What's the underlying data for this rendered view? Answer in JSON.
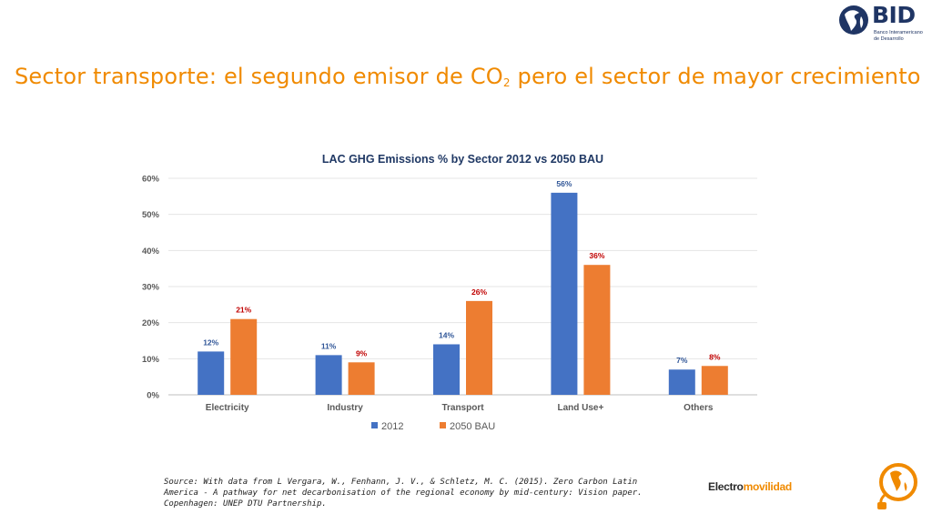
{
  "slide": {
    "title_main": "Sector transporte: el segundo emisor de CO",
    "title_sub": "2",
    "title_end": " pero el sector de mayor crecimiento"
  },
  "logo": {
    "word": "BID",
    "subtitle_line1": "Banco Interamericano",
    "subtitle_line2": "de Desarrollo"
  },
  "brand": {
    "part1": "Electro",
    "part2": "movilidad"
  },
  "source": {
    "line1": "Source: With data from  L Vergara, W., Fenhann, J. V., & Schletz, M. C. (2015). Zero Carbon Latin",
    "line2": "America - A pathway for net decarbonisation of the regional economy by mid-century: Vision paper.",
    "line3": "Copenhagen: UNEP DTU Partnership."
  },
  "colors": {
    "accent": "#F08A00",
    "series_2012": "#4472C4",
    "series_2050": "#ED7D31",
    "label_2012": "#2F5597",
    "label_2050": "#C00000",
    "brand_navy": "#1F3564"
  },
  "chart_data": {
    "type": "bar",
    "title": "LAC GHG Emissions % by Sector  2012 vs 2050 BAU",
    "categories": [
      "Electricity",
      "Industry",
      "Transport",
      "Land Use+",
      "Others"
    ],
    "series": [
      {
        "name": "2012",
        "values": [
          12,
          11,
          14,
          56,
          7
        ],
        "labels": [
          "12%",
          "11%",
          "14%",
          "56%",
          "7%"
        ]
      },
      {
        "name": "2050 BAU",
        "values": [
          21,
          9,
          26,
          36,
          8
        ],
        "labels": [
          "21%",
          "9%",
          "26%",
          "36%",
          "8%"
        ]
      }
    ],
    "ylim": [
      0,
      60
    ],
    "yticks": [
      0,
      10,
      20,
      30,
      40,
      50,
      60
    ],
    "ytick_labels": [
      "0%",
      "10%",
      "20%",
      "30%",
      "40%",
      "50%",
      "60%"
    ],
    "grid": true,
    "legend": "bottom-center",
    "xlabel": "",
    "ylabel": ""
  }
}
